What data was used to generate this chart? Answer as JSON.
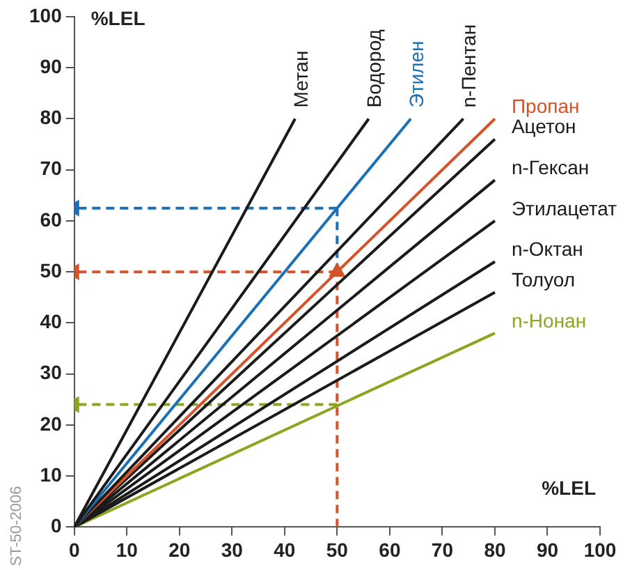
{
  "chart_data": {
    "type": "line",
    "xlabel": "%LEL",
    "ylabel": "%LEL",
    "xlim": [
      0,
      100
    ],
    "ylim": [
      0,
      100
    ],
    "xticks": [
      0,
      10,
      20,
      30,
      40,
      50,
      60,
      70,
      80,
      90,
      100
    ],
    "yticks": [
      0,
      10,
      20,
      30,
      40,
      50,
      60,
      70,
      80,
      90,
      100
    ],
    "grid": false,
    "legend": false,
    "marker": "none",
    "line_style": "solid",
    "annotations": [
      "ST-50-2006"
    ],
    "series": [
      {
        "name": "Метан",
        "color": "#1a1a1a",
        "x": [
          0,
          42
        ],
        "values": [
          0,
          80
        ]
      },
      {
        "name": "Водород",
        "color": "#1a1a1a",
        "x": [
          0,
          56
        ],
        "values": [
          0,
          80
        ]
      },
      {
        "name": "Этилен",
        "color": "#1a6fb5",
        "x": [
          0,
          64
        ],
        "values": [
          0,
          80
        ]
      },
      {
        "name": "n-Пентан",
        "color": "#1a1a1a",
        "x": [
          0,
          74
        ],
        "values": [
          0,
          80
        ]
      },
      {
        "name": "Пропан",
        "color": "#d4532a",
        "x": [
          0,
          80
        ],
        "values": [
          0,
          80
        ]
      },
      {
        "name": "Ацетон",
        "color": "#1a1a1a",
        "x": [
          0,
          80
        ],
        "values": [
          0,
          76
        ]
      },
      {
        "name": "n-Гексан",
        "color": "#1a1a1a",
        "x": [
          0,
          80
        ],
        "values": [
          0,
          68
        ]
      },
      {
        "name": "Этилацетат",
        "color": "#1a1a1a",
        "x": [
          0,
          80
        ],
        "values": [
          0,
          60
        ]
      },
      {
        "name": "n-Октан",
        "color": "#1a1a1a",
        "x": [
          0,
          80
        ],
        "values": [
          0,
          52
        ]
      },
      {
        "name": "Толуол",
        "color": "#1a1a1a",
        "x": [
          0,
          80
        ],
        "values": [
          0,
          46
        ]
      },
      {
        "name": "n-Нонан",
        "color": "#8aa61e",
        "x": [
          0,
          80
        ],
        "values": [
          0,
          38
        ]
      },
      {
        "color": "#d4532a",
        "x": [
          50,
          50
        ],
        "values": [
          0,
          50
        ],
        "marker": "triangle",
        "line_style": "dashed"
      },
      {
        "color": "#1a6fb5",
        "x": [
          50,
          50
        ],
        "values": [
          50,
          62.5
        ],
        "line_style": "dashed"
      },
      {
        "color": "#1a6fb5",
        "x": [
          50,
          0
        ],
        "values": [
          62.5,
          62.5
        ],
        "marker": "triangle",
        "line_style": "dashed"
      },
      {
        "color": "#d4532a",
        "x": [
          50,
          0
        ],
        "values": [
          50,
          50
        ],
        "marker": "triangle",
        "line_style": "dashed"
      },
      {
        "color": "#8aa61e",
        "x": [
          50,
          0
        ],
        "values": [
          24,
          24
        ],
        "marker": "triangle",
        "line_style": "dashed"
      }
    ]
  }
}
